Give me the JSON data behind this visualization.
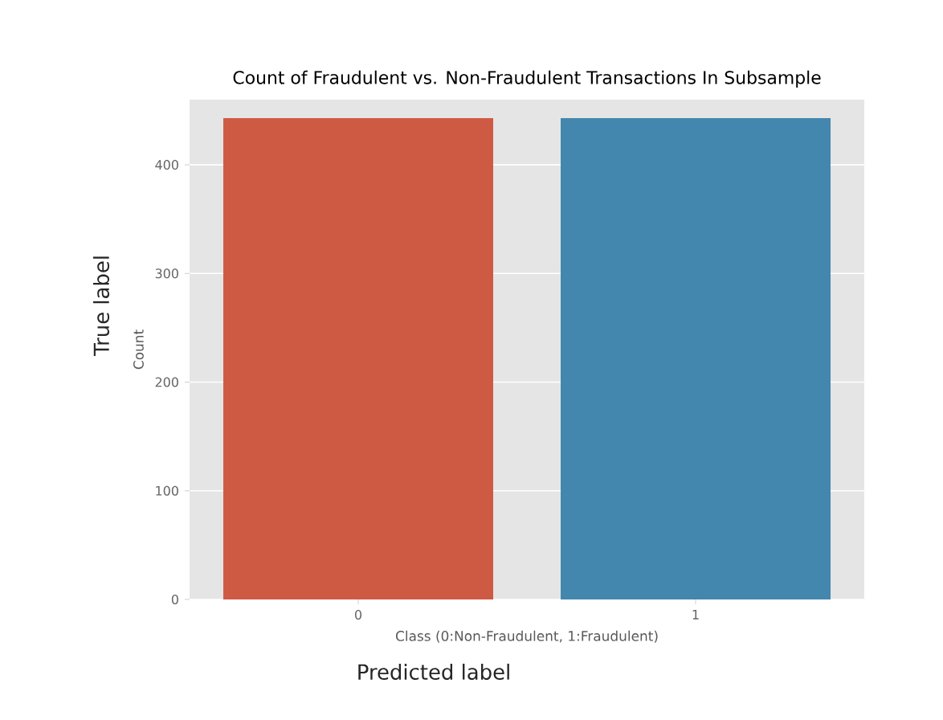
{
  "chart_data": {
    "type": "bar",
    "title": "Count of Fraudulent vs. Non-Fraudulent Transactions In Subsample",
    "xlabel": "Class (0:Non-Fraudulent, 1:Fraudulent)",
    "ylabel": "Count",
    "categories": [
      "0",
      "1"
    ],
    "values": [
      443,
      443
    ],
    "colors": [
      "#cf5a44",
      "#4386ae"
    ],
    "ylim": [
      0,
      460
    ],
    "yticks": [
      0,
      100,
      200,
      300,
      400
    ],
    "grid": "y",
    "annotations": [
      "True label",
      "Predicted label"
    ]
  }
}
